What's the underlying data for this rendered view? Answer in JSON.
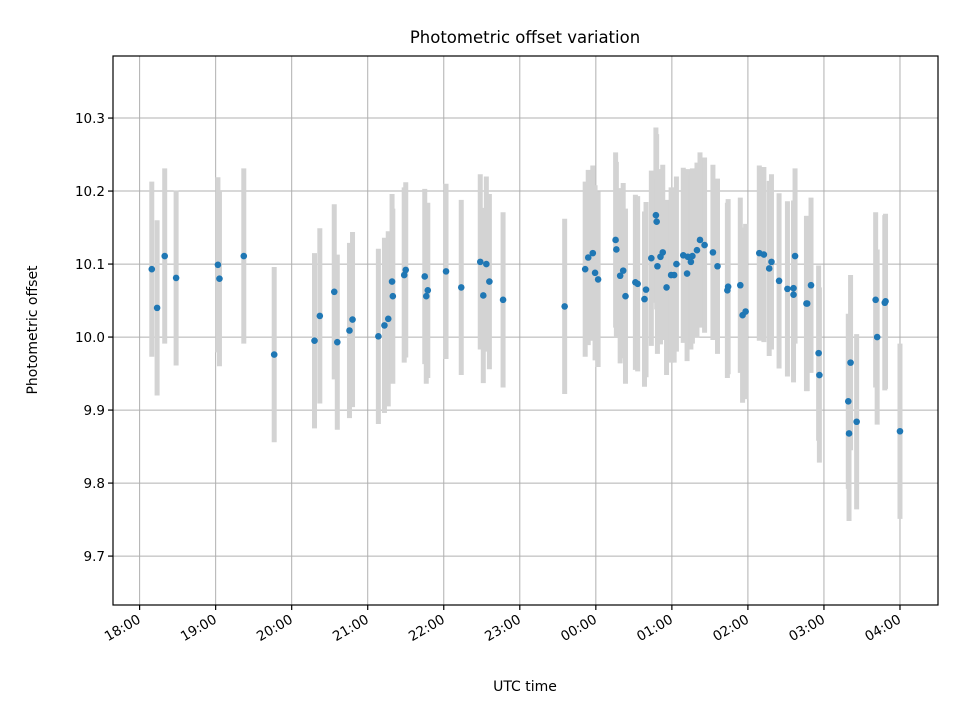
{
  "chart_data": {
    "type": "scatter",
    "title": "Photometric offset variation",
    "xlabel": "UTC time",
    "ylabel": "Photometric offset",
    "grid": true,
    "x_unit": "hours since 18:00 UTC",
    "xlim": [
      -0.35,
      10.5
    ],
    "ylim": [
      9.633,
      10.385
    ],
    "x_ticks": [
      {
        "value": 0,
        "label": "18:00"
      },
      {
        "value": 1,
        "label": "19:00"
      },
      {
        "value": 2,
        "label": "20:00"
      },
      {
        "value": 3,
        "label": "21:00"
      },
      {
        "value": 4,
        "label": "22:00"
      },
      {
        "value": 5,
        "label": "23:00"
      },
      {
        "value": 6,
        "label": "00:00"
      },
      {
        "value": 7,
        "label": "01:00"
      },
      {
        "value": 8,
        "label": "02:00"
      },
      {
        "value": 9,
        "label": "03:00"
      },
      {
        "value": 10,
        "label": "04:00"
      }
    ],
    "y_ticks": [
      {
        "value": 9.7,
        "label": "9.7"
      },
      {
        "value": 9.8,
        "label": "9.8"
      },
      {
        "value": 9.9,
        "label": "9.9"
      },
      {
        "value": 10.0,
        "label": "10.0"
      },
      {
        "value": 10.1,
        "label": "10.1"
      },
      {
        "value": 10.2,
        "label": "10.2"
      },
      {
        "value": 10.3,
        "label": "10.3"
      }
    ],
    "colors": {
      "points": "#1f77b4",
      "errorbars": "#d3d3d3",
      "grid": "#b0b0b0"
    },
    "series": [
      {
        "name": "offset",
        "error_half_width": 0.12,
        "points": [
          [
            0.16,
            10.093
          ],
          [
            0.23,
            10.04
          ],
          [
            0.33,
            10.111
          ],
          [
            0.48,
            10.081
          ],
          [
            1.03,
            10.099
          ],
          [
            1.05,
            10.08
          ],
          [
            1.37,
            10.111
          ],
          [
            1.77,
            9.976
          ],
          [
            2.3,
            9.995
          ],
          [
            2.37,
            10.029
          ],
          [
            2.56,
            10.062
          ],
          [
            2.6,
            9.993
          ],
          [
            2.76,
            10.009
          ],
          [
            2.8,
            10.024
          ],
          [
            3.14,
            10.001
          ],
          [
            3.22,
            10.016
          ],
          [
            3.27,
            10.025
          ],
          [
            3.32,
            10.076
          ],
          [
            3.33,
            10.056
          ],
          [
            3.48,
            10.085
          ],
          [
            3.5,
            10.092
          ],
          [
            3.75,
            10.083
          ],
          [
            3.77,
            10.056
          ],
          [
            3.79,
            10.064
          ],
          [
            4.03,
            10.09
          ],
          [
            4.23,
            10.068
          ],
          [
            4.48,
            10.103
          ],
          [
            4.52,
            10.057
          ],
          [
            4.56,
            10.1
          ],
          [
            4.6,
            10.076
          ],
          [
            4.78,
            10.051
          ],
          [
            5.59,
            10.042
          ],
          [
            5.86,
            10.093
          ],
          [
            5.9,
            10.109
          ],
          [
            5.96,
            10.115
          ],
          [
            5.99,
            10.088
          ],
          [
            6.03,
            10.079
          ],
          [
            6.26,
            10.133
          ],
          [
            6.27,
            10.12
          ],
          [
            6.32,
            10.084
          ],
          [
            6.36,
            10.091
          ],
          [
            6.39,
            10.056
          ],
          [
            6.52,
            10.075
          ],
          [
            6.55,
            10.073
          ],
          [
            6.64,
            10.052
          ],
          [
            6.66,
            10.065
          ],
          [
            6.73,
            10.108
          ],
          [
            6.79,
            10.167
          ],
          [
            6.8,
            10.158
          ],
          [
            6.81,
            10.097
          ],
          [
            6.85,
            10.11
          ],
          [
            6.88,
            10.116
          ],
          [
            6.93,
            10.068
          ],
          [
            6.99,
            10.085
          ],
          [
            7.03,
            10.085
          ],
          [
            7.06,
            10.1
          ],
          [
            7.15,
            10.112
          ],
          [
            7.2,
            10.087
          ],
          [
            7.21,
            10.11
          ],
          [
            7.25,
            10.103
          ],
          [
            7.27,
            10.111
          ],
          [
            7.33,
            10.119
          ],
          [
            7.37,
            10.133
          ],
          [
            7.43,
            10.126
          ],
          [
            7.54,
            10.116
          ],
          [
            7.6,
            10.097
          ],
          [
            7.73,
            10.064
          ],
          [
            7.74,
            10.069
          ],
          [
            7.9,
            10.071
          ],
          [
            7.93,
            10.03
          ],
          [
            7.97,
            10.035
          ],
          [
            8.15,
            10.115
          ],
          [
            8.21,
            10.113
          ],
          [
            8.28,
            10.094
          ],
          [
            8.31,
            10.103
          ],
          [
            8.41,
            10.077
          ],
          [
            8.52,
            10.066
          ],
          [
            8.6,
            10.058
          ],
          [
            8.6,
            10.067
          ],
          [
            8.62,
            10.111
          ],
          [
            8.77,
            10.046
          ],
          [
            8.78,
            10.046
          ],
          [
            8.83,
            10.071
          ],
          [
            8.93,
            9.978
          ],
          [
            8.94,
            9.948
          ],
          [
            9.32,
            9.912
          ],
          [
            9.33,
            9.868
          ],
          [
            9.35,
            9.965
          ],
          [
            9.43,
            9.884
          ],
          [
            9.68,
            10.051
          ],
          [
            9.7,
            10.0
          ],
          [
            9.8,
            10.047
          ],
          [
            9.81,
            10.049
          ],
          [
            10.0,
            9.871
          ]
        ]
      }
    ]
  }
}
